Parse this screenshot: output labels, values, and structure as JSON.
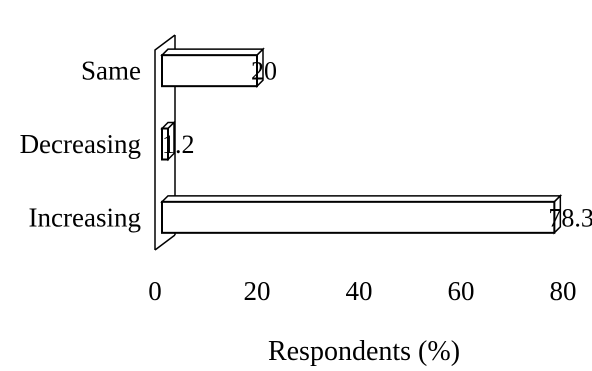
{
  "chart_data": {
    "type": "bar",
    "orientation": "horizontal",
    "three_d": true,
    "categories": [
      "Same",
      "Decreasing",
      "Increasing"
    ],
    "values": [
      20,
      1.2,
      78.3
    ],
    "data_labels": [
      "20",
      "1.2",
      "78.3"
    ],
    "xlabel": "Respondents (%)",
    "xlim": [
      0,
      80
    ],
    "xticks": [
      0,
      20,
      40,
      60,
      80
    ],
    "grid": false,
    "legend": "none",
    "bar_color": "#ffffff",
    "edge_color": "#000000"
  }
}
